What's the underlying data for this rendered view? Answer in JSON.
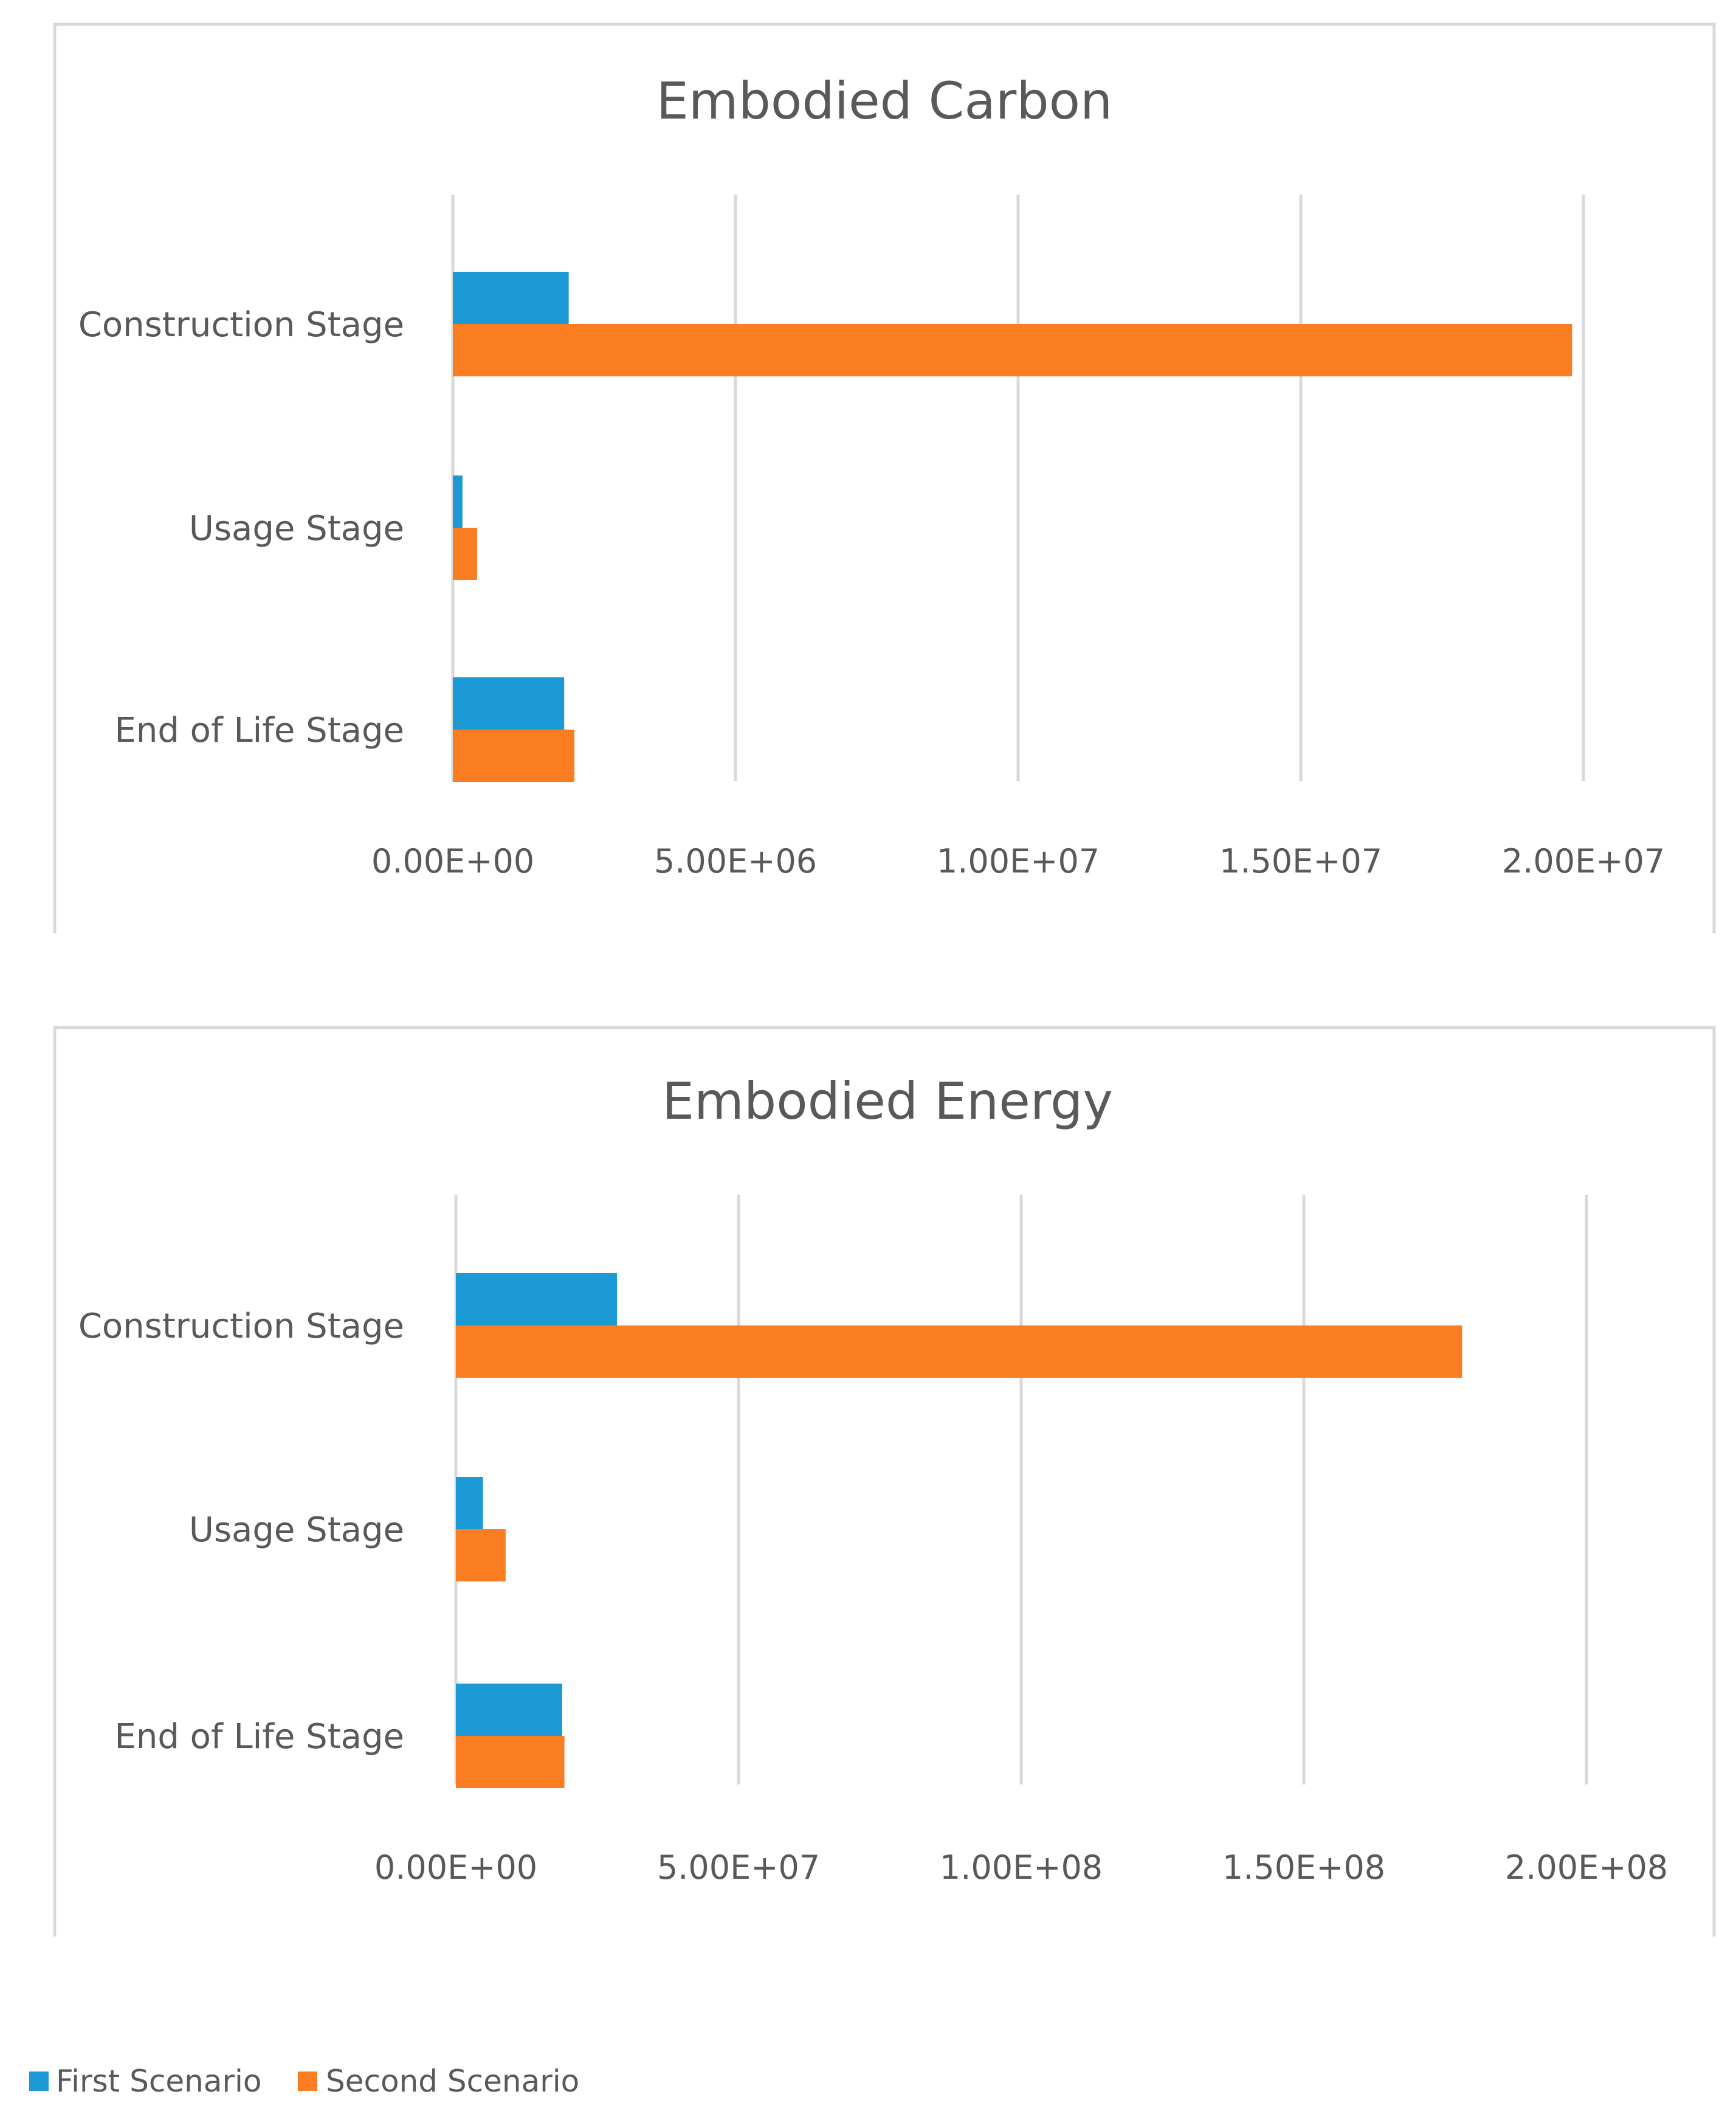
{
  "chart_data": [
    {
      "type": "bar",
      "orientation": "horizontal",
      "title": "Embodied Carbon",
      "categories": [
        "Construction Stage",
        "Usage Stage",
        "End of Life Stage"
      ],
      "series": [
        {
          "name": "First Scenario",
          "values": [
            2050000,
            170000,
            1970000
          ]
        },
        {
          "name": "Second Scenario",
          "values": [
            19800000,
            430000,
            2150000
          ]
        }
      ],
      "xlim": [
        0,
        20000000
      ],
      "ticks": [
        0,
        5000000,
        10000000,
        15000000,
        20000000
      ],
      "tick_labels": [
        "0.00E+00",
        "5.00E+06",
        "1.00E+07",
        "1.50E+07",
        "2.00E+07"
      ],
      "grid": true
    },
    {
      "type": "bar",
      "orientation": "horizontal",
      "title": "Embodied Energy",
      "categories": [
        "Construction Stage",
        "Usage Stage",
        "End of Life Stage"
      ],
      "series": [
        {
          "name": "First Scenario",
          "values": [
            28500000,
            4800000,
            18800000
          ]
        },
        {
          "name": "Second Scenario",
          "values": [
            178000000,
            8800000,
            19200000
          ]
        }
      ],
      "xlim": [
        0,
        200000000
      ],
      "ticks": [
        0,
        50000000,
        100000000,
        150000000,
        200000000
      ],
      "tick_labels": [
        "0.00E+00",
        "5.00E+07",
        "1.00E+08",
        "1.50E+08",
        "2.00E+08"
      ],
      "grid": true
    }
  ],
  "legend": {
    "position": "bottom-left",
    "items": [
      {
        "label": "First Scenario",
        "color": "#1b9ad6"
      },
      {
        "label": "Second Scenario",
        "color": "#fb7d21"
      }
    ]
  },
  "colors": {
    "first": "#1b9ad6",
    "second": "#fb7d21",
    "grid": "#d9d9d9",
    "frame": "#d9d9d9",
    "text": "#595959"
  }
}
